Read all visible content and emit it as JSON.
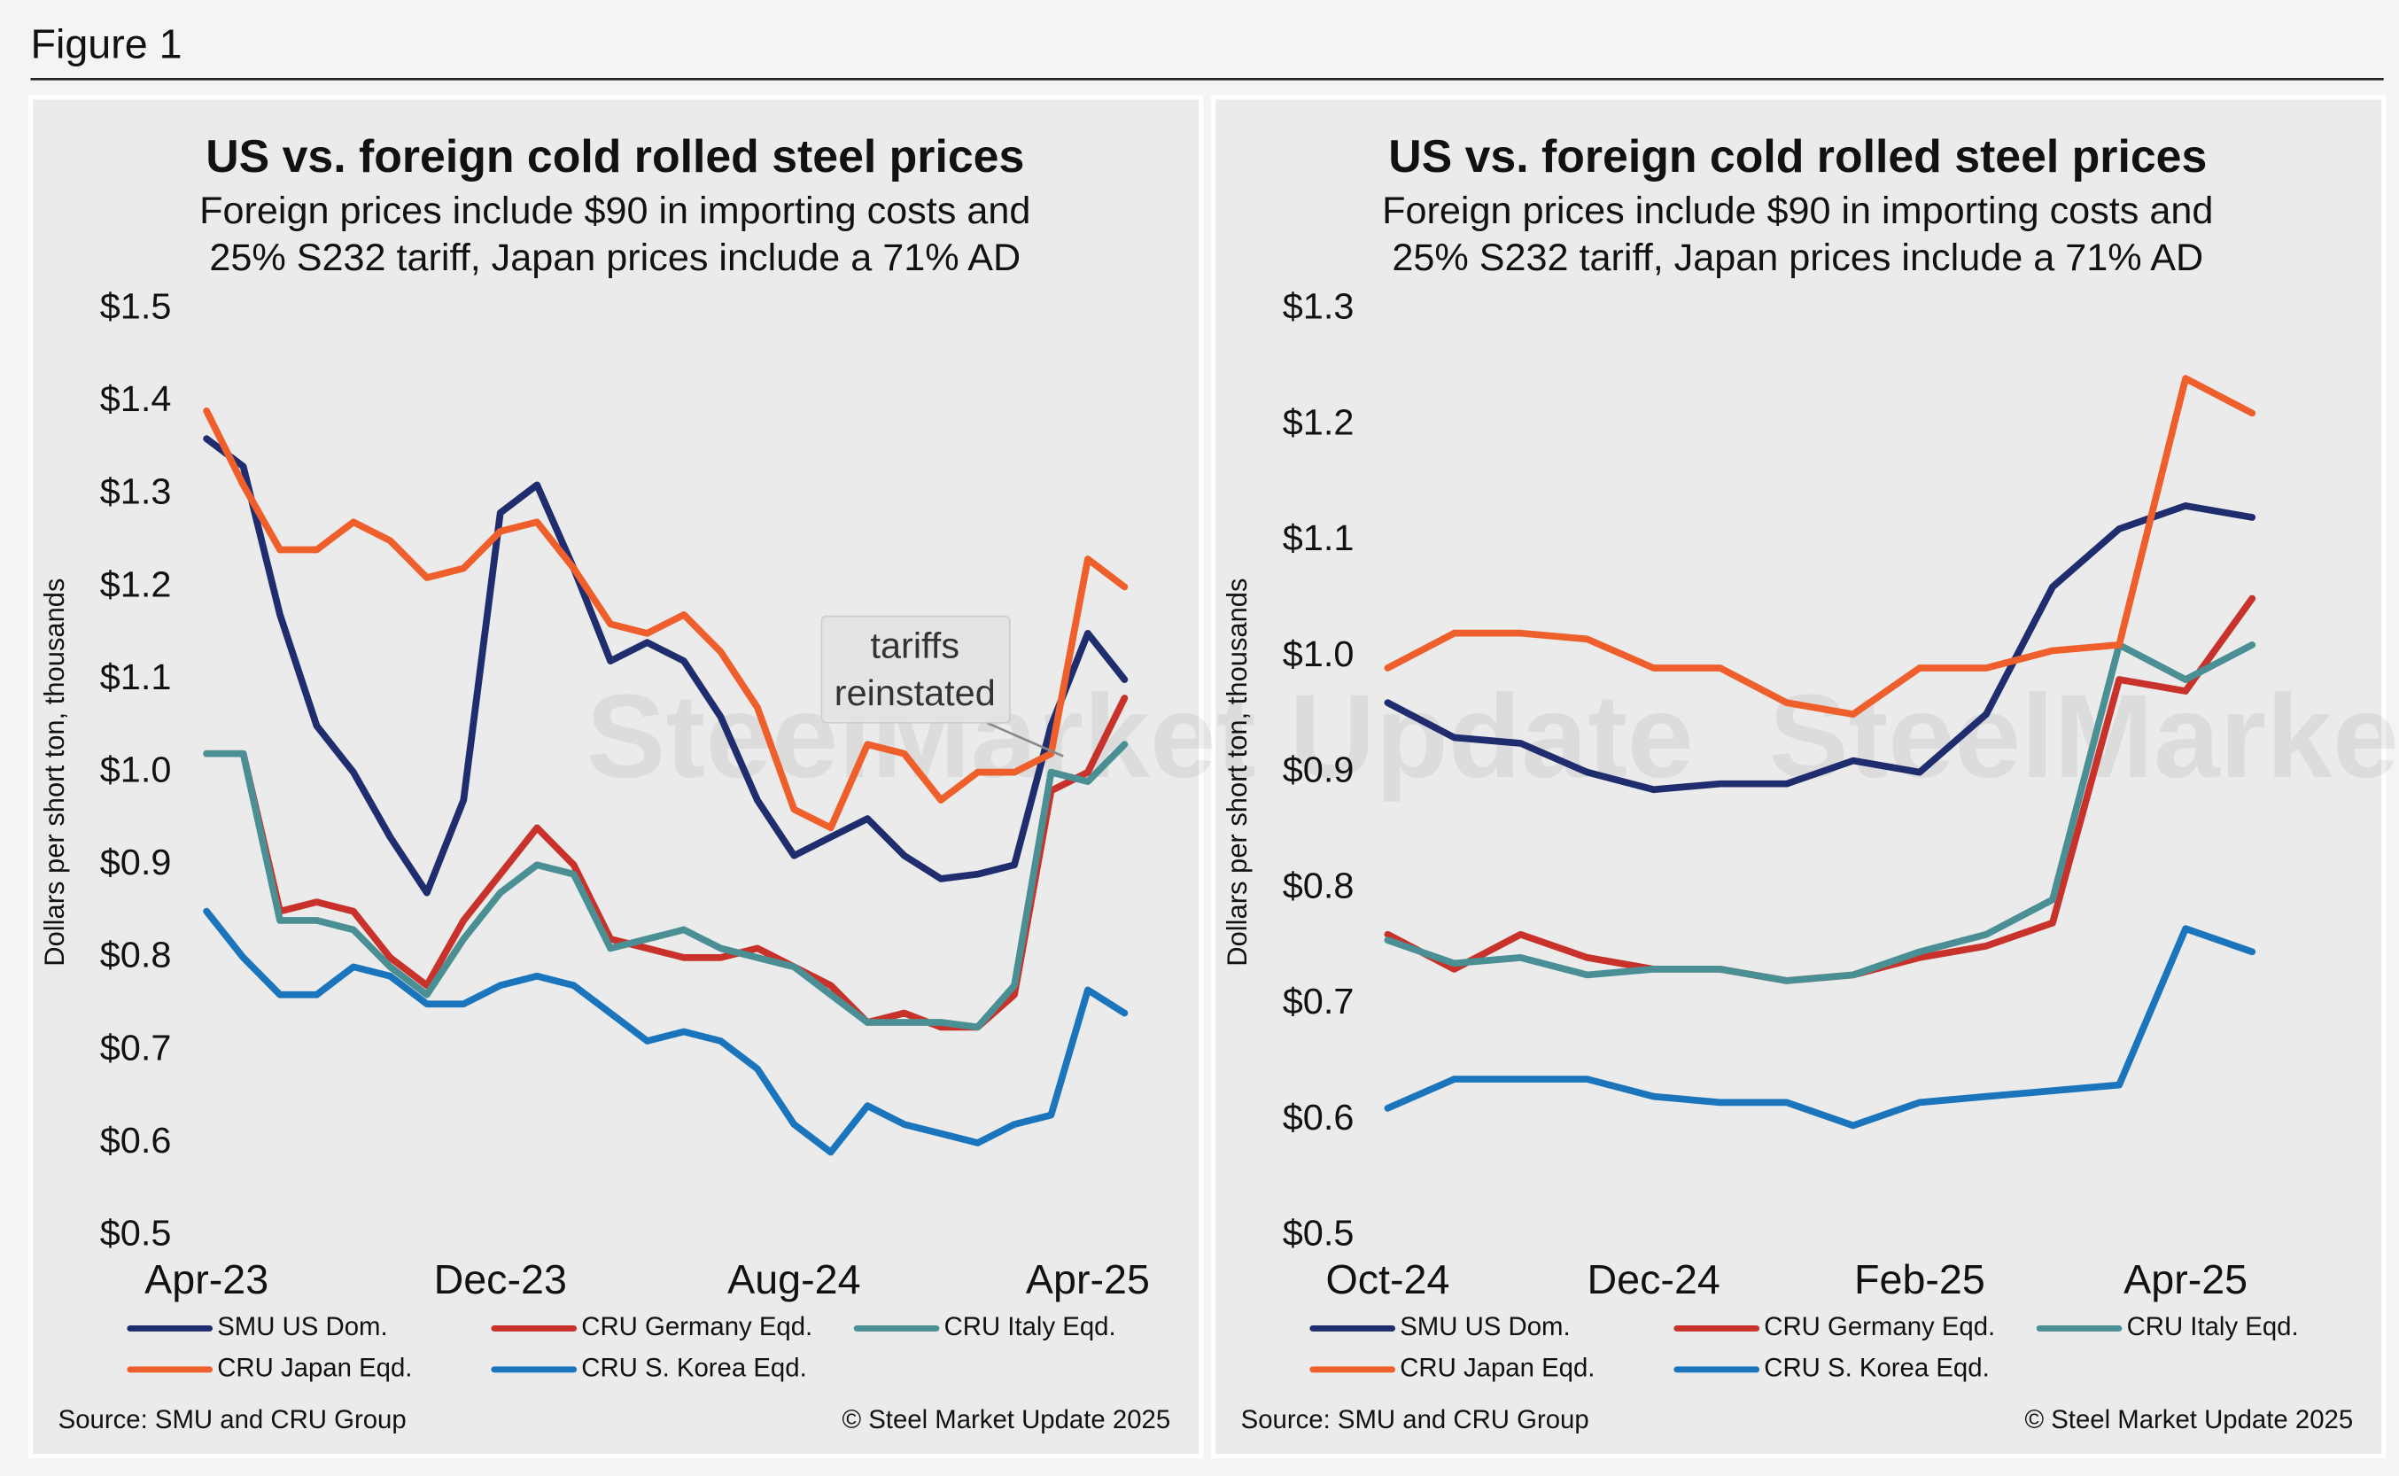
{
  "figure_label": "Figure 1",
  "chart_data": [
    {
      "type": "line",
      "title": "US vs. foreign cold rolled steel prices",
      "subtitle": [
        "Foreign prices include $90 in importing costs and",
        "25% S232 tariff, Japan prices include a 71% AD"
      ],
      "y_label": "Dollars per short ton, thousands",
      "source": "Source: SMU and CRU Group",
      "copyright": "© Steel Market Update 2025",
      "watermark": "SteelMarket Update",
      "annotation": [
        "tariffs",
        "reinstated"
      ],
      "categories": [
        "Apr-23",
        null,
        null,
        null,
        null,
        null,
        null,
        null,
        "Dec-23",
        null,
        null,
        null,
        null,
        null,
        null,
        null,
        "Aug-24",
        null,
        null,
        null,
        null,
        null,
        null,
        null,
        "Apr-25",
        null
      ],
      "ylim": [
        0.5,
        1.5
      ],
      "yticks": [
        {
          "value": 0.5,
          "label": "$0.5"
        },
        {
          "value": 0.6,
          "label": "$0.6"
        },
        {
          "value": 0.7,
          "label": "$0.7"
        },
        {
          "value": 0.8,
          "label": "$0.8"
        },
        {
          "value": 0.9,
          "label": "$0.9"
        },
        {
          "value": 1.0,
          "label": "$1.0"
        },
        {
          "value": 1.1,
          "label": "$1.1"
        },
        {
          "value": 1.2,
          "label": "$1.2"
        },
        {
          "value": 1.3,
          "label": "$1.3"
        },
        {
          "value": 1.4,
          "label": "$1.4"
        },
        {
          "value": 1.5,
          "label": "$1.5"
        }
      ],
      "series": [
        {
          "name": "SMU US Dom.",
          "color": "#1f2d6e",
          "values": [
            1.36,
            1.33,
            1.17,
            1.05,
            1.0,
            0.93,
            0.87,
            0.97,
            1.28,
            1.31,
            1.22,
            1.12,
            1.14,
            1.12,
            1.06,
            0.97,
            0.91,
            0.93,
            0.95,
            0.91,
            0.885,
            0.89,
            0.9,
            1.05,
            1.15,
            1.1
          ]
        },
        {
          "name": "CRU Germany Eqd.",
          "color": "#c8322a",
          "values": [
            1.02,
            1.02,
            0.85,
            0.86,
            0.85,
            0.8,
            0.77,
            0.84,
            0.89,
            0.94,
            0.9,
            0.82,
            0.81,
            0.8,
            0.8,
            0.81,
            0.79,
            0.77,
            0.73,
            0.74,
            0.725,
            0.725,
            0.76,
            0.98,
            1.0,
            1.08
          ]
        },
        {
          "name": "CRU Italy Eqd.",
          "color": "#4a8f94",
          "values": [
            1.02,
            1.02,
            0.84,
            0.84,
            0.83,
            0.79,
            0.76,
            0.82,
            0.87,
            0.9,
            0.89,
            0.81,
            0.82,
            0.83,
            0.81,
            0.8,
            0.79,
            0.76,
            0.73,
            0.73,
            0.73,
            0.725,
            0.77,
            1.0,
            0.99,
            1.03
          ]
        },
        {
          "name": "CRU Japan Eqd.",
          "color": "#ee5f2c",
          "values": [
            1.39,
            1.31,
            1.24,
            1.24,
            1.27,
            1.25,
            1.21,
            1.22,
            1.26,
            1.27,
            1.22,
            1.16,
            1.15,
            1.17,
            1.13,
            1.07,
            0.96,
            0.94,
            1.03,
            1.02,
            0.97,
            1.0,
            1.0,
            1.02,
            1.23,
            1.2
          ]
        },
        {
          "name": "CRU S. Korea Eqd.",
          "color": "#1b75bc",
          "values": [
            0.85,
            0.8,
            0.76,
            0.76,
            0.79,
            0.78,
            0.75,
            0.75,
            0.77,
            0.78,
            0.77,
            0.74,
            0.71,
            0.72,
            0.71,
            0.68,
            0.62,
            0.59,
            0.64,
            0.62,
            0.61,
            0.6,
            0.62,
            0.63,
            0.765,
            0.74
          ]
        }
      ]
    },
    {
      "type": "line",
      "title": "US vs. foreign cold rolled steel prices",
      "subtitle": [
        "Foreign prices include $90 in importing costs and",
        "25% S232 tariff, Japan prices include a 71% AD"
      ],
      "y_label": "Dollars per short ton, thousands",
      "source": "Source: SMU and CRU Group",
      "copyright": "© Steel Market Update 2025",
      "watermark": "SteelMarket Update",
      "categories": [
        "Oct-24",
        null,
        null,
        null,
        "Dec-24",
        null,
        null,
        null,
        "Feb-25",
        null,
        null,
        null,
        "Apr-25",
        null
      ],
      "ylim": [
        0.5,
        1.3
      ],
      "yticks": [
        {
          "value": 0.5,
          "label": "$0.5"
        },
        {
          "value": 0.6,
          "label": "$0.6"
        },
        {
          "value": 0.7,
          "label": "$0.7"
        },
        {
          "value": 0.8,
          "label": "$0.8"
        },
        {
          "value": 0.9,
          "label": "$0.9"
        },
        {
          "value": 1.0,
          "label": "$1.0"
        },
        {
          "value": 1.1,
          "label": "$1.1"
        },
        {
          "value": 1.2,
          "label": "$1.2"
        },
        {
          "value": 1.3,
          "label": "$1.3"
        }
      ],
      "series": [
        {
          "name": "SMU US Dom.",
          "color": "#1f2d6e",
          "values": [
            0.96,
            0.93,
            0.925,
            0.9,
            0.885,
            0.89,
            0.89,
            0.91,
            0.9,
            0.95,
            1.06,
            1.11,
            1.13,
            1.12
          ]
        },
        {
          "name": "CRU Germany Eqd.",
          "color": "#c8322a",
          "values": [
            0.76,
            0.73,
            0.76,
            0.74,
            0.73,
            0.73,
            0.72,
            0.725,
            0.74,
            0.75,
            0.77,
            0.98,
            0.97,
            1.05
          ]
        },
        {
          "name": "CRU Italy Eqd.",
          "color": "#4a8f94",
          "values": [
            0.755,
            0.735,
            0.74,
            0.725,
            0.73,
            0.73,
            0.72,
            0.725,
            0.745,
            0.76,
            0.79,
            1.01,
            0.98,
            1.01
          ]
        },
        {
          "name": "CRU Japan Eqd.",
          "color": "#ee5f2c",
          "values": [
            0.99,
            1.02,
            1.02,
            1.015,
            0.99,
            0.99,
            0.96,
            0.95,
            0.99,
            0.99,
            1.005,
            1.01,
            1.24,
            1.21
          ]
        },
        {
          "name": "CRU S. Korea Eqd.",
          "color": "#1b75bc",
          "values": [
            0.61,
            0.635,
            0.635,
            0.635,
            0.62,
            0.615,
            0.615,
            0.595,
            0.615,
            0.62,
            0.625,
            0.63,
            0.765,
            0.745
          ]
        }
      ]
    }
  ]
}
